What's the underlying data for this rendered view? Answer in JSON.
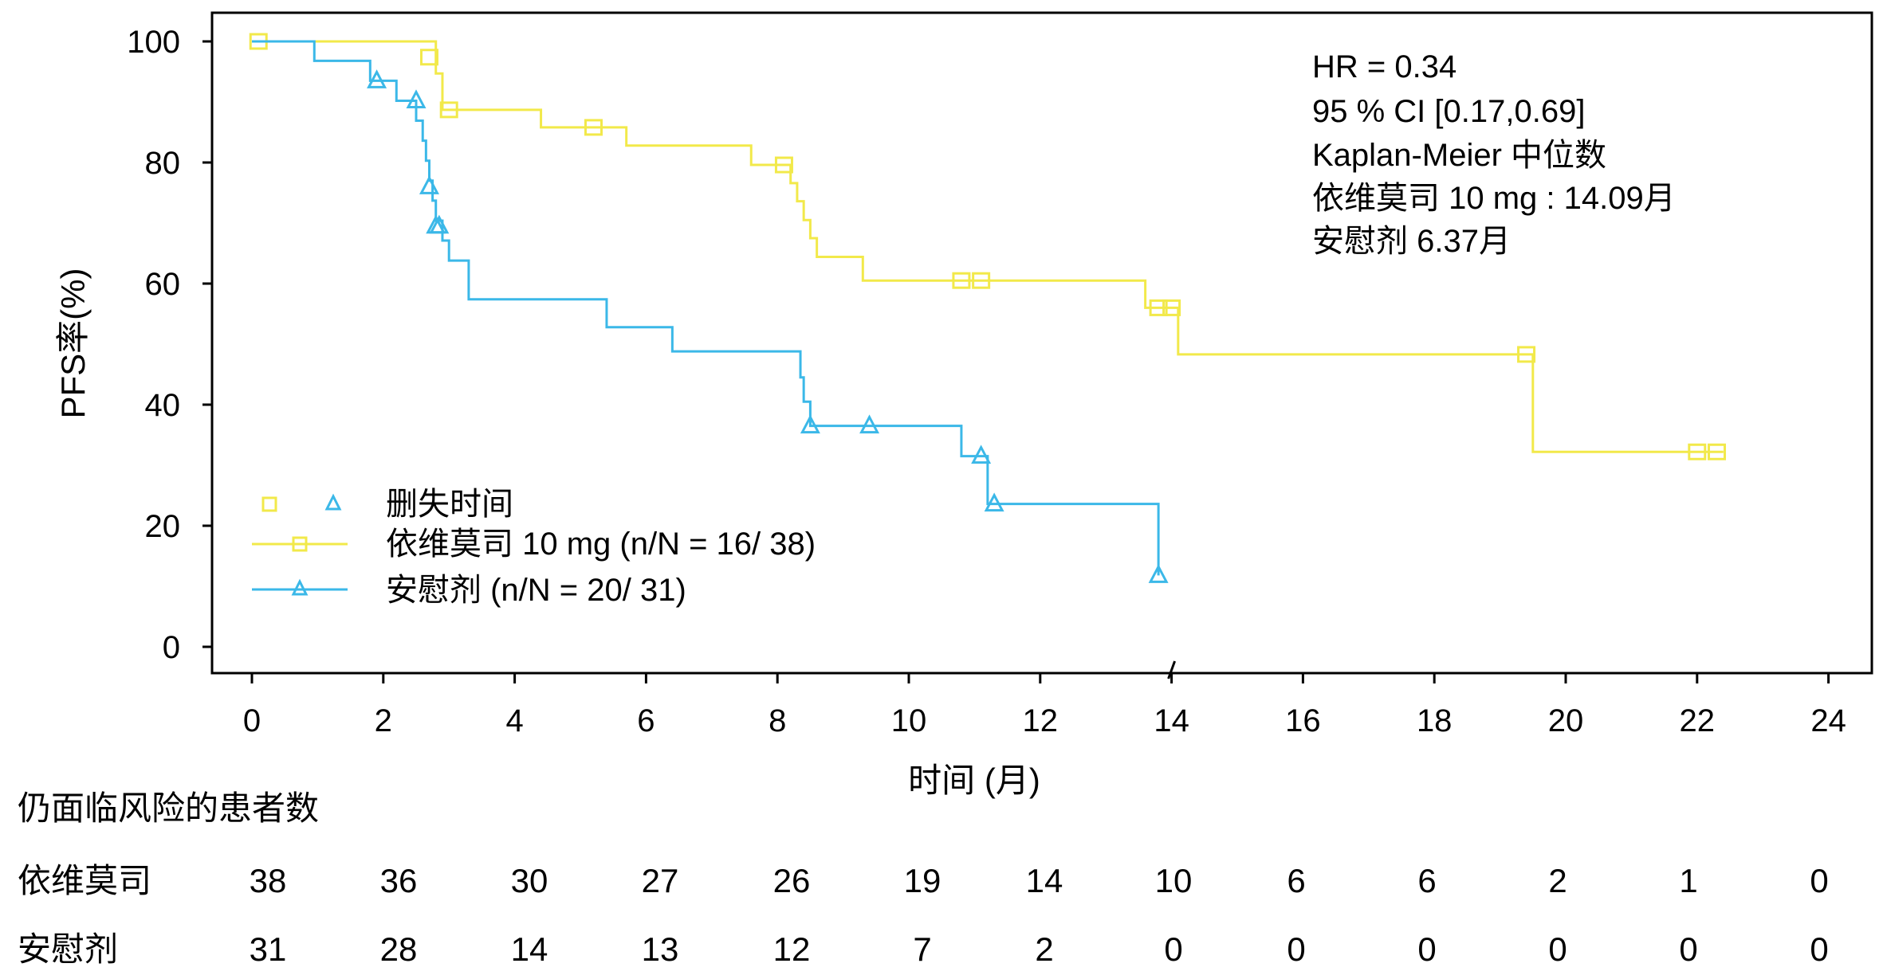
{
  "chart_data": {
    "type": "line",
    "subtype": "kaplan-meier",
    "xlabel": "时间 (月)",
    "ylabel": "PFS率(%)",
    "xlim": [
      0,
      24
    ],
    "ylim": [
      0,
      100
    ],
    "xticks": [
      "0",
      "2",
      "4",
      "6",
      "8",
      "10",
      "12",
      "14",
      "16",
      "18",
      "20",
      "22",
      "24"
    ],
    "yticks": [
      "0",
      "20",
      "40",
      "60",
      "80",
      "100"
    ],
    "axis_break_at": 14,
    "annotations": [
      "HR = 0.34",
      "95 % CI [0.17,0.69]",
      "Kaplan-Meier 中位数",
      "依维莫司 10 mg : 14.09月",
      "安慰剂 6.37月"
    ],
    "legend": {
      "position": "bottom-left",
      "censor_label": "删失时间",
      "entries": [
        "依维莫司 10 mg (n/N =  16/ 38)",
        "安慰剂 (n/N =  20/ 31)"
      ]
    },
    "series": [
      {
        "name": "依维莫司 10 mg (n/N =  16/ 38)",
        "color": "#F2E94A",
        "marker": "square",
        "steps": [
          [
            0,
            100
          ],
          [
            2.8,
            94.7
          ],
          [
            2.9,
            88.7
          ],
          [
            4.4,
            85.8
          ],
          [
            5.7,
            82.8
          ],
          [
            7.6,
            79.6
          ],
          [
            8.2,
            76.6
          ],
          [
            8.3,
            73.6
          ],
          [
            8.4,
            70.5
          ],
          [
            8.5,
            67.5
          ],
          [
            8.6,
            64.4
          ],
          [
            9.3,
            60.5
          ],
          [
            13.6,
            56.0
          ],
          [
            14.1,
            48.3
          ],
          [
            19.5,
            32.2
          ]
        ],
        "end_x": 22.4,
        "censored": [
          [
            0.1,
            100
          ],
          [
            2.7,
            97.4
          ],
          [
            3.0,
            88.7
          ],
          [
            5.2,
            85.8
          ],
          [
            8.1,
            79.6
          ],
          [
            10.8,
            60.5
          ],
          [
            11.1,
            60.5
          ],
          [
            13.8,
            56.0
          ],
          [
            14.0,
            56.0
          ],
          [
            19.4,
            48.3
          ],
          [
            22.0,
            32.2
          ],
          [
            22.3,
            32.2
          ]
        ]
      },
      {
        "name": "安慰剂 (n/N =  20/ 31)",
        "color": "#3BB8E8",
        "marker": "triangle",
        "steps": [
          [
            0,
            100
          ],
          [
            0.95,
            96.8
          ],
          [
            1.8,
            93.5
          ],
          [
            2.2,
            90.2
          ],
          [
            2.5,
            86.9
          ],
          [
            2.6,
            83.6
          ],
          [
            2.65,
            80.3
          ],
          [
            2.7,
            77.0
          ],
          [
            2.75,
            73.7
          ],
          [
            2.8,
            70.4
          ],
          [
            2.9,
            67.1
          ],
          [
            3.0,
            63.8
          ],
          [
            3.3,
            57.4
          ],
          [
            5.4,
            52.8
          ],
          [
            6.4,
            48.8
          ],
          [
            8.35,
            44.5
          ],
          [
            8.4,
            40.5
          ],
          [
            8.5,
            36.5
          ],
          [
            10.8,
            31.5
          ],
          [
            11.2,
            23.6
          ],
          [
            13.8,
            11.8
          ]
        ],
        "end_x": 13.8,
        "censored": [
          [
            1.9,
            93.5
          ],
          [
            2.5,
            90.2
          ],
          [
            2.7,
            76.0
          ],
          [
            2.8,
            69.5
          ],
          [
            2.85,
            69.5
          ],
          [
            8.5,
            36.5
          ],
          [
            9.4,
            36.5
          ],
          [
            11.1,
            31.5
          ],
          [
            11.3,
            23.6
          ],
          [
            13.8,
            11.8
          ]
        ]
      }
    ]
  },
  "risk_table": {
    "title": "仍面临风险的患者数",
    "rows": [
      {
        "label": "依维莫司",
        "values": [
          "38",
          "36",
          "30",
          "27",
          "26",
          "19",
          "14",
          "10",
          "6",
          "6",
          "2",
          "1",
          "0"
        ]
      },
      {
        "label": "安慰剂",
        "values": [
          "31",
          "28",
          "14",
          "13",
          "12",
          "7",
          "2",
          "0",
          "0",
          "0",
          "0",
          "0",
          "0"
        ]
      }
    ]
  }
}
